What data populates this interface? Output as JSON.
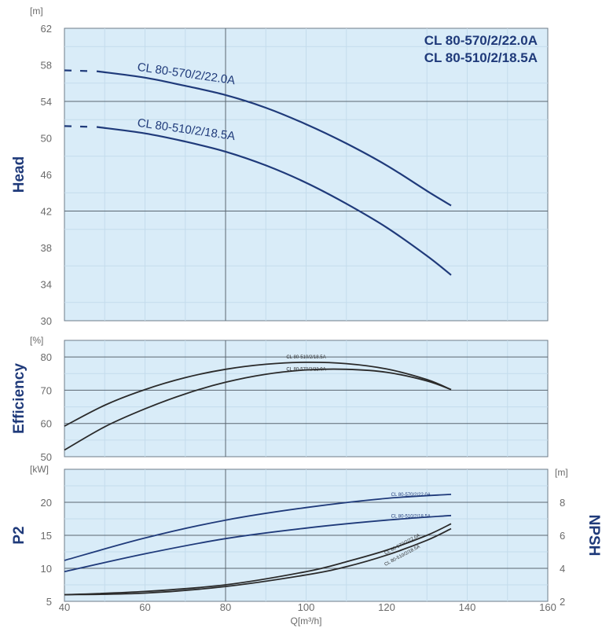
{
  "chart_data": [
    {
      "type": "line",
      "panel": "head",
      "ylabel": "Head",
      "yunit": "[m]",
      "ylim": [
        30,
        62
      ],
      "yticks": [
        30,
        34,
        38,
        42,
        46,
        50,
        54,
        58,
        62
      ],
      "xlim": [
        40,
        160
      ],
      "grid": true,
      "titles": [
        "CL 80-570/2/22.0A",
        "CL 80-510/2/18.5A"
      ],
      "series": [
        {
          "name": "CL 80-570/2/22.0A",
          "color": "#1f3a7a",
          "x": [
            48,
            60,
            70,
            80,
            90,
            100,
            110,
            120,
            130,
            136
          ],
          "y": [
            57.3,
            56.6,
            55.7,
            54.7,
            53.3,
            51.5,
            49.4,
            47.0,
            44.2,
            42.6
          ],
          "dashed_from_x": 40,
          "dashed_start_y": 57.4
        },
        {
          "name": "CL 80-510/2/18.5A",
          "color": "#1f3a7a",
          "x": [
            48,
            60,
            70,
            80,
            90,
            100,
            110,
            120,
            130,
            136
          ],
          "y": [
            51.2,
            50.5,
            49.6,
            48.5,
            47.0,
            45.1,
            42.8,
            40.2,
            37.1,
            35.0
          ],
          "dashed_from_x": 40,
          "dashed_start_y": 51.3
        }
      ]
    },
    {
      "type": "line",
      "panel": "efficiency",
      "ylabel": "Efficiency",
      "yunit": "[%]",
      "ylim": [
        50,
        85
      ],
      "yticks": [
        50,
        60,
        70,
        80
      ],
      "xlim": [
        40,
        160
      ],
      "grid": true,
      "series": [
        {
          "name": "CL 80-510/2/18.5A",
          "color": "#2a2a2a",
          "x": [
            40,
            50,
            60,
            70,
            80,
            90,
            100,
            110,
            120,
            130,
            136
          ],
          "y": [
            59.2,
            65.5,
            70.2,
            73.8,
            76.3,
            77.8,
            78.4,
            78.0,
            76.4,
            73.2,
            70.2
          ]
        },
        {
          "name": "CL 80-570/2/22.0A",
          "color": "#2a2a2a",
          "x": [
            40,
            50,
            60,
            70,
            80,
            90,
            100,
            110,
            120,
            130,
            136
          ],
          "y": [
            52.0,
            59.0,
            64.4,
            68.9,
            72.4,
            74.8,
            76.1,
            76.3,
            75.4,
            72.8,
            70.2
          ]
        }
      ]
    },
    {
      "type": "line",
      "panel": "p2_npsh",
      "ylabel": "P2",
      "yunit": "[kW]",
      "ylim": [
        5,
        25
      ],
      "yticks": [
        5,
        10,
        15,
        20
      ],
      "y2label": "NPSH",
      "y2unit": "[m]",
      "y2lim": [
        2,
        10
      ],
      "y2ticks": [
        2,
        4,
        6,
        8
      ],
      "xlabel": "Q[m³/h]",
      "xlim": [
        40,
        160
      ],
      "xticks": [
        40,
        60,
        80,
        100,
        120,
        140,
        160
      ],
      "grid": true,
      "series": [
        {
          "name": "CL 80-570/2/22.0A",
          "axis": "P2",
          "color": "#1f3a7a",
          "x": [
            40,
            60,
            80,
            100,
            120,
            136
          ],
          "y": [
            11.2,
            14.6,
            17.3,
            19.2,
            20.6,
            21.2
          ]
        },
        {
          "name": "CL 80-510/2/18.5A",
          "axis": "P2",
          "color": "#1f3a7a",
          "x": [
            40,
            60,
            80,
            100,
            120,
            136
          ],
          "y": [
            9.5,
            12.2,
            14.5,
            16.1,
            17.3,
            18.0
          ]
        },
        {
          "name": "CL 80-570/2/22.0A",
          "axis": "NPSH",
          "color": "#2a2a2a",
          "x": [
            40,
            60,
            80,
            100,
            110,
            120,
            130,
            136
          ],
          "y": [
            2.4,
            2.6,
            3.0,
            3.8,
            4.4,
            5.1,
            6.0,
            6.7
          ]
        },
        {
          "name": "CL 80-510/2/18.5A",
          "axis": "NPSH",
          "color": "#2a2a2a",
          "x": [
            40,
            60,
            80,
            100,
            110,
            120,
            130,
            136
          ],
          "y": [
            2.4,
            2.5,
            2.9,
            3.6,
            4.1,
            4.8,
            5.7,
            6.4
          ]
        }
      ]
    }
  ]
}
